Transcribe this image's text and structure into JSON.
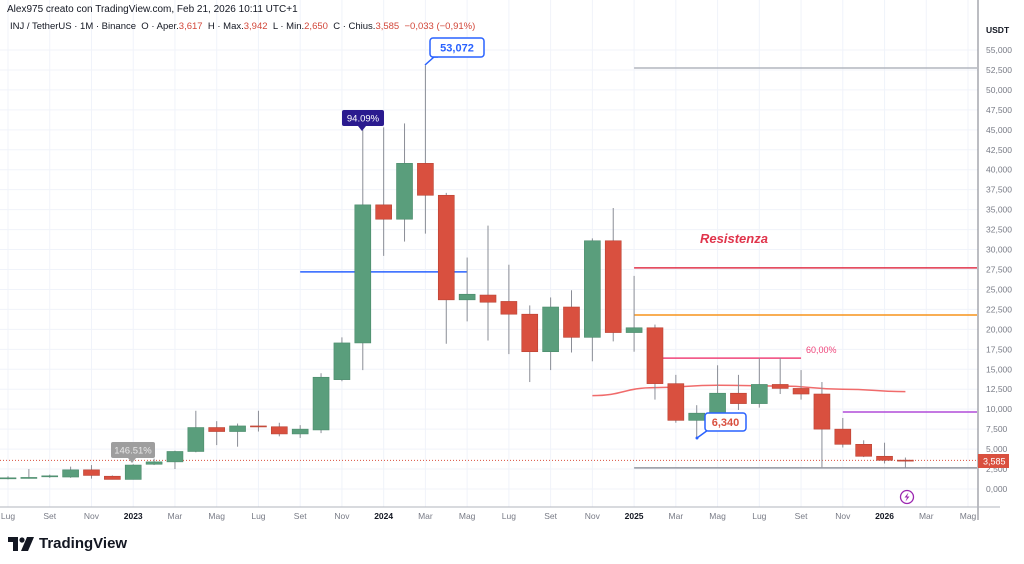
{
  "header": {
    "author_line": "Alex975 creato con TradingView.com, Feb 21, 2026 10:11 UTC+1"
  },
  "legend": {
    "symbol": "INJ / TetherUS · 1M · Binance",
    "open_label": "O · Aper.",
    "open": "3,617",
    "high_label": "H · Max.",
    "high": "3,942",
    "low_label": "L · Min.",
    "low": "2,650",
    "close_label": "C · Chius.",
    "close": "3,585",
    "change": "−0,033 (−0,91%)"
  },
  "logo": {
    "text": "TradingView"
  },
  "colors": {
    "up": "#5a9e7c",
    "down": "#d9503f",
    "grid": "#f0f3fa",
    "axis": "#787b86"
  },
  "chart_data": {
    "type": "candlestick",
    "currency": "USDT",
    "ylim": [
      0,
      55
    ],
    "yticks": [
      0,
      2.5,
      5,
      7.5,
      10,
      12.5,
      15,
      17.5,
      20,
      22.5,
      25,
      27.5,
      30,
      32.5,
      35,
      37.5,
      40,
      42.5,
      45,
      47.5,
      50,
      52.5,
      55
    ],
    "xticks": [
      {
        "label": "Lug",
        "t": "2022-07"
      },
      {
        "label": "Set",
        "t": "2022-09"
      },
      {
        "label": "Nov",
        "t": "2022-11"
      },
      {
        "label": "2023",
        "t": "2023-01",
        "year": true
      },
      {
        "label": "Mar",
        "t": "2023-03"
      },
      {
        "label": "Mag",
        "t": "2023-05"
      },
      {
        "label": "Lug",
        "t": "2023-07"
      },
      {
        "label": "Set",
        "t": "2023-09"
      },
      {
        "label": "Nov",
        "t": "2023-11"
      },
      {
        "label": "2024",
        "t": "2024-01",
        "year": true
      },
      {
        "label": "Mar",
        "t": "2024-03"
      },
      {
        "label": "Mag",
        "t": "2024-05"
      },
      {
        "label": "Lug",
        "t": "2024-07"
      },
      {
        "label": "Set",
        "t": "2024-09"
      },
      {
        "label": "Nov",
        "t": "2024-11"
      },
      {
        "label": "2025",
        "t": "2025-01",
        "year": true
      },
      {
        "label": "Mar",
        "t": "2025-03"
      },
      {
        "label": "Mag",
        "t": "2025-05"
      },
      {
        "label": "Lug",
        "t": "2025-07"
      },
      {
        "label": "Set",
        "t": "2025-09"
      },
      {
        "label": "Nov",
        "t": "2025-11"
      },
      {
        "label": "2026",
        "t": "2026-01",
        "year": true
      },
      {
        "label": "Mar",
        "t": "2026-03"
      },
      {
        "label": "Mag",
        "t": "2026-05"
      }
    ],
    "candles": [
      {
        "t": "2022-07",
        "o": 1.3,
        "h": 1.6,
        "l": 1.2,
        "c": 1.4
      },
      {
        "t": "2022-08",
        "o": 1.35,
        "h": 2.5,
        "l": 1.3,
        "c": 1.45
      },
      {
        "t": "2022-09",
        "o": 1.55,
        "h": 1.8,
        "l": 1.4,
        "c": 1.65
      },
      {
        "t": "2022-10",
        "o": 1.5,
        "h": 2.8,
        "l": 1.4,
        "c": 2.4
      },
      {
        "t": "2022-11",
        "o": 2.4,
        "h": 3.0,
        "l": 1.3,
        "c": 1.7
      },
      {
        "t": "2022-12",
        "o": 1.6,
        "h": 1.7,
        "l": 1.2,
        "c": 1.2
      },
      {
        "t": "2023-01",
        "o": 1.2,
        "h": 3.1,
        "l": 1.2,
        "c": 3.0
      },
      {
        "t": "2023-02",
        "o": 3.1,
        "h": 3.8,
        "l": 3.0,
        "c": 3.4
      },
      {
        "t": "2023-03",
        "o": 3.4,
        "h": 4.8,
        "l": 2.5,
        "c": 4.7
      },
      {
        "t": "2023-04",
        "o": 4.7,
        "h": 9.8,
        "l": 4.6,
        "c": 7.7
      },
      {
        "t": "2023-05",
        "o": 7.7,
        "h": 8.5,
        "l": 5.5,
        "c": 7.2
      },
      {
        "t": "2023-06",
        "o": 7.2,
        "h": 8.2,
        "l": 5.3,
        "c": 7.9
      },
      {
        "t": "2023-07",
        "o": 7.9,
        "h": 9.8,
        "l": 7.2,
        "c": 7.8
      },
      {
        "t": "2023-08",
        "o": 7.8,
        "h": 8.3,
        "l": 6.6,
        "c": 6.9
      },
      {
        "t": "2023-09",
        "o": 6.9,
        "h": 8.0,
        "l": 6.4,
        "c": 7.5
      },
      {
        "t": "2023-10",
        "o": 7.4,
        "h": 14.5,
        "l": 7.0,
        "c": 14.0
      },
      {
        "t": "2023-11",
        "o": 13.7,
        "h": 19.0,
        "l": 13.5,
        "c": 18.3
      },
      {
        "t": "2023-12",
        "o": 18.3,
        "h": 45.0,
        "l": 14.9,
        "c": 35.6
      },
      {
        "t": "2024-01",
        "o": 35.6,
        "h": 45.3,
        "l": 29.2,
        "c": 33.8
      },
      {
        "t": "2024-02",
        "o": 33.8,
        "h": 45.8,
        "l": 31.0,
        "c": 40.8
      },
      {
        "t": "2024-03",
        "o": 40.8,
        "h": 53.072,
        "l": 32.0,
        "c": 36.8
      },
      {
        "t": "2024-04",
        "o": 36.8,
        "h": 37.1,
        "l": 18.2,
        "c": 23.7
      },
      {
        "t": "2024-05",
        "o": 23.7,
        "h": 29.0,
        "l": 21.0,
        "c": 24.4
      },
      {
        "t": "2024-06",
        "o": 24.3,
        "h": 33.0,
        "l": 18.6,
        "c": 23.4
      },
      {
        "t": "2024-07",
        "o": 23.5,
        "h": 28.1,
        "l": 16.9,
        "c": 21.9
      },
      {
        "t": "2024-08",
        "o": 21.9,
        "h": 23.0,
        "l": 13.4,
        "c": 17.2
      },
      {
        "t": "2024-09",
        "o": 17.2,
        "h": 24.0,
        "l": 14.9,
        "c": 22.8
      },
      {
        "t": "2024-10",
        "o": 22.8,
        "h": 24.9,
        "l": 17.1,
        "c": 19.0
      },
      {
        "t": "2024-11",
        "o": 19.0,
        "h": 31.4,
        "l": 16.0,
        "c": 31.1
      },
      {
        "t": "2024-12",
        "o": 31.1,
        "h": 35.2,
        "l": 18.5,
        "c": 19.6
      },
      {
        "t": "2025-01",
        "o": 19.6,
        "h": 26.7,
        "l": 17.2,
        "c": 20.2
      },
      {
        "t": "2025-02",
        "o": 20.2,
        "h": 20.6,
        "l": 11.2,
        "c": 13.2
      },
      {
        "t": "2025-03",
        "o": 13.2,
        "h": 14.3,
        "l": 8.3,
        "c": 8.6
      },
      {
        "t": "2025-04",
        "o": 8.6,
        "h": 10.5,
        "l": 6.34,
        "c": 9.5
      },
      {
        "t": "2025-05",
        "o": 9.5,
        "h": 15.5,
        "l": 9.3,
        "c": 12.0
      },
      {
        "t": "2025-06",
        "o": 12.0,
        "h": 14.3,
        "l": 9.9,
        "c": 10.7
      },
      {
        "t": "2025-07",
        "o": 10.7,
        "h": 16.4,
        "l": 10.2,
        "c": 13.1
      },
      {
        "t": "2025-08",
        "o": 13.1,
        "h": 16.4,
        "l": 11.9,
        "c": 12.6
      },
      {
        "t": "2025-09",
        "o": 12.6,
        "h": 14.9,
        "l": 11.2,
        "c": 11.9
      },
      {
        "t": "2025-10",
        "o": 11.9,
        "h": 13.4,
        "l": 2.72,
        "c": 7.5
      },
      {
        "t": "2025-11",
        "o": 7.5,
        "h": 8.9,
        "l": 5.2,
        "c": 5.6
      },
      {
        "t": "2025-12",
        "o": 5.6,
        "h": 6.1,
        "l": 4.0,
        "c": 4.1
      },
      {
        "t": "2026-01",
        "o": 4.1,
        "h": 5.8,
        "l": 3.2,
        "c": 3.6
      },
      {
        "t": "2026-02",
        "o": 3.617,
        "h": 3.942,
        "l": 2.65,
        "c": 3.585
      }
    ],
    "hlines": [
      {
        "name": "support-line-blue",
        "value": 27.2,
        "from": "2023-09",
        "to": "2024-05",
        "color": "#2962ff"
      },
      {
        "name": "top-line-gray",
        "value": 52.75,
        "from": "2025-01",
        "to": "end",
        "color": "#b2b5be"
      },
      {
        "name": "resistance-line",
        "value": 27.7,
        "from": "2025-01",
        "to": "end",
        "color": "#e0344b"
      },
      {
        "name": "orange-line",
        "value": 21.8,
        "from": "2025-01",
        "to": "end",
        "color": "#f7931a"
      },
      {
        "name": "fib-60-line",
        "value": 16.4,
        "from": "2025-02",
        "to": "2025-09",
        "color": "#f0457a"
      },
      {
        "name": "purple-line",
        "value": 9.65,
        "from": "2025-11",
        "to": "end",
        "color": "#b04cd8"
      },
      {
        "name": "low-line-gray",
        "value": 2.65,
        "from": "2025-01",
        "to": "end",
        "color": "#9598a1"
      }
    ],
    "curve": {
      "color": "#f06b6b",
      "points": [
        {
          "t": "2024-11",
          "v": 11.7
        },
        {
          "t": "2025-02",
          "v": 12.7
        },
        {
          "t": "2025-05",
          "v": 13.0
        },
        {
          "t": "2025-08",
          "v": 12.9
        },
        {
          "t": "2025-11",
          "v": 12.5
        },
        {
          "t": "2026-02",
          "v": 12.2
        }
      ]
    },
    "annotations": {
      "resistance_text": "Resistenza",
      "fib_label": "60,00%",
      "ath_label": "53,072",
      "pct_2024_label": "94.09%",
      "pct_2023_label": "146.51%",
      "low_label": "6,340",
      "last_price_label": "3,585"
    }
  }
}
